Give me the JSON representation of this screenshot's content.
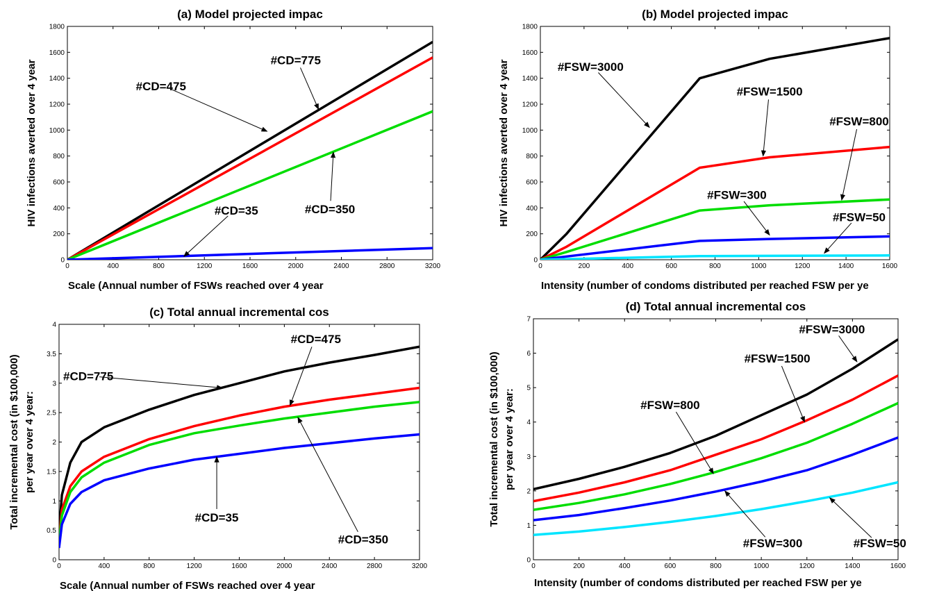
{
  "chart_data": [
    {
      "type": "line",
      "title": "(a) Model projected impac",
      "xlabel": "Scale (Annual number of FSWs reached over 4 year",
      "ylabel": "HIV infections averted over 4 year",
      "xlim": [
        0,
        3200
      ],
      "ylim": [
        0,
        1800
      ],
      "xticks": [
        0,
        400,
        800,
        1200,
        1600,
        2000,
        2400,
        2800,
        3200
      ],
      "yticks": [
        0,
        200,
        400,
        600,
        800,
        1000,
        1200,
        1400,
        1600,
        1800
      ],
      "grid": false,
      "series": [
        {
          "color": "#000000",
          "x": [
            0,
            3200
          ],
          "y": [
            0,
            1680
          ]
        },
        {
          "color": "#ff0000",
          "x": [
            0,
            3200
          ],
          "y": [
            0,
            1560
          ]
        },
        {
          "color": "#00dd00",
          "x": [
            0,
            3200
          ],
          "y": [
            0,
            1145
          ]
        },
        {
          "color": "#0000ff",
          "x": [
            0,
            3200
          ],
          "y": [
            0,
            90
          ]
        }
      ],
      "annotations": [
        {
          "text": "#CD=775",
          "tx": 2000,
          "ty": 1540,
          "ax": 2200,
          "ay": 1160
        },
        {
          "text": "#CD=475",
          "tx": 820,
          "ty": 1340,
          "ax": 1750,
          "ay": 990
        },
        {
          "text": "#CD=350",
          "tx": 2300,
          "ty": 390,
          "ax": 2330,
          "ay": 830
        },
        {
          "text": "#CD=35",
          "tx": 1480,
          "ty": 380,
          "ax": 1020,
          "ay": 25
        }
      ]
    },
    {
      "type": "line",
      "title": "(b) Model projected impac",
      "xlabel": "Intensity (number of condoms distributed per reached FSW per ye",
      "ylabel": "HIV infections averted over 4 year",
      "xlim": [
        0,
        1600
      ],
      "ylim": [
        0,
        1800
      ],
      "xticks": [
        0,
        200,
        400,
        600,
        800,
        1000,
        1200,
        1400,
        1600
      ],
      "yticks": [
        0,
        200,
        400,
        600,
        800,
        1000,
        1200,
        1400,
        1600,
        1800
      ],
      "grid": false,
      "series": [
        {
          "color": "#000000",
          "x": [
            0,
            120,
            730,
            1050,
            1600
          ],
          "y": [
            0,
            200,
            1400,
            1550,
            1710
          ]
        },
        {
          "color": "#ff0000",
          "x": [
            0,
            120,
            730,
            1050,
            1600
          ],
          "y": [
            0,
            100,
            710,
            790,
            870
          ]
        },
        {
          "color": "#00dd00",
          "x": [
            0,
            120,
            730,
            1050,
            1600
          ],
          "y": [
            0,
            60,
            380,
            420,
            465
          ]
        },
        {
          "color": "#0000ff",
          "x": [
            0,
            120,
            730,
            1050,
            1600
          ],
          "y": [
            0,
            25,
            145,
            160,
            180
          ]
        },
        {
          "color": "#00e5ff",
          "x": [
            0,
            120,
            730,
            1050,
            1600
          ],
          "y": [
            0,
            5,
            28,
            30,
            33
          ]
        }
      ],
      "annotations": [
        {
          "text": "#FSW=3000",
          "tx": 230,
          "ty": 1490,
          "ax": 500,
          "ay": 1020
        },
        {
          "text": "#FSW=1500",
          "tx": 1050,
          "ty": 1300,
          "ax": 1020,
          "ay": 800
        },
        {
          "text": "#FSW=800",
          "tx": 1460,
          "ty": 1070,
          "ax": 1380,
          "ay": 460
        },
        {
          "text": "#FSW=300",
          "tx": 900,
          "ty": 500,
          "ax": 1050,
          "ay": 190
        },
        {
          "text": "#FSW=50",
          "tx": 1460,
          "ty": 330,
          "ax": 1300,
          "ay": 50
        }
      ]
    },
    {
      "type": "line",
      "title": "(c) Total annual incremental cos",
      "xlabel": "Scale (Annual number of FSWs reached over 4 year",
      "ylabel": "Total incremental cost (in $100,000)",
      "ylabel2": "per year over 4 year:",
      "xlim": [
        0,
        3200
      ],
      "ylim": [
        0,
        4
      ],
      "xticks": [
        0,
        400,
        800,
        1200,
        1600,
        2000,
        2400,
        2800,
        3200
      ],
      "yticks": [
        "0",
        "0.5",
        "1",
        "1.5",
        "2",
        "2.5",
        "3",
        "3.5",
        "4"
      ],
      "grid": false,
      "series": [
        {
          "color": "#000000",
          "x": [
            0,
            25,
            100,
            200,
            400,
            800,
            1200,
            1600,
            2000,
            2400,
            2800,
            3200
          ],
          "y": [
            0.45,
            1.1,
            1.65,
            2.0,
            2.25,
            2.55,
            2.8,
            3.0,
            3.2,
            3.35,
            3.48,
            3.62
          ]
        },
        {
          "color": "#ff0000",
          "x": [
            0,
            25,
            100,
            200,
            400,
            800,
            1200,
            1600,
            2000,
            2400,
            2800,
            3200
          ],
          "y": [
            0.35,
            0.85,
            1.25,
            1.5,
            1.75,
            2.05,
            2.27,
            2.45,
            2.6,
            2.72,
            2.82,
            2.92
          ]
        },
        {
          "color": "#00dd00",
          "x": [
            0,
            25,
            100,
            200,
            400,
            800,
            1200,
            1600,
            2000,
            2400,
            2800,
            3200
          ],
          "y": [
            0.3,
            0.75,
            1.15,
            1.4,
            1.65,
            1.95,
            2.15,
            2.28,
            2.4,
            2.5,
            2.6,
            2.68
          ]
        },
        {
          "color": "#0000ff",
          "x": [
            0,
            25,
            100,
            200,
            400,
            800,
            1200,
            1600,
            2000,
            2400,
            2800,
            3200
          ],
          "y": [
            0.2,
            0.6,
            0.95,
            1.15,
            1.35,
            1.55,
            1.7,
            1.8,
            1.9,
            1.98,
            2.06,
            2.13
          ]
        }
      ],
      "annotations": [
        {
          "text": "#CD=775",
          "tx": 260,
          "ty": 3.12,
          "ax": 1450,
          "ay": 2.92
        },
        {
          "text": "#CD=475",
          "tx": 2280,
          "ty": 3.75,
          "ax": 2050,
          "ay": 2.62
        },
        {
          "text": "#CD=350",
          "tx": 2700,
          "ty": 0.35,
          "ax": 2120,
          "ay": 2.42
        },
        {
          "text": "#CD=35",
          "tx": 1400,
          "ty": 0.72,
          "ax": 1400,
          "ay": 1.75
        }
      ]
    },
    {
      "type": "line",
      "title": "(d) Total annual incremental cos",
      "xlabel": "Intensity (number of condoms distributed per reached FSW per ye",
      "ylabel": "Total incremental cost (in $100,000)",
      "ylabel2": "per year over 4 year:",
      "xlim": [
        0,
        1600
      ],
      "ylim": [
        0,
        7
      ],
      "xticks": [
        0,
        200,
        400,
        600,
        800,
        1000,
        1200,
        1400,
        1600
      ],
      "yticks": [
        0,
        1,
        2,
        3,
        4,
        5,
        6,
        7
      ],
      "grid": false,
      "series": [
        {
          "color": "#000000",
          "x": [
            0,
            200,
            400,
            600,
            800,
            1000,
            1200,
            1400,
            1600
          ],
          "y": [
            2.05,
            2.35,
            2.7,
            3.1,
            3.6,
            4.2,
            4.8,
            5.55,
            6.4
          ]
        },
        {
          "color": "#ff0000",
          "x": [
            0,
            200,
            400,
            600,
            800,
            1000,
            1200,
            1400,
            1600
          ],
          "y": [
            1.7,
            1.95,
            2.25,
            2.6,
            3.05,
            3.5,
            4.05,
            4.65,
            5.35
          ]
        },
        {
          "color": "#00dd00",
          "x": [
            0,
            200,
            400,
            600,
            800,
            1000,
            1200,
            1400,
            1600
          ],
          "y": [
            1.45,
            1.65,
            1.9,
            2.2,
            2.55,
            2.95,
            3.4,
            3.95,
            4.55
          ]
        },
        {
          "color": "#0000ff",
          "x": [
            0,
            200,
            400,
            600,
            800,
            1000,
            1200,
            1400,
            1600
          ],
          "y": [
            1.15,
            1.3,
            1.5,
            1.72,
            1.98,
            2.27,
            2.6,
            3.05,
            3.55
          ]
        },
        {
          "color": "#00e5ff",
          "x": [
            0,
            200,
            400,
            600,
            800,
            1000,
            1200,
            1400,
            1600
          ],
          "y": [
            0.72,
            0.82,
            0.95,
            1.1,
            1.27,
            1.47,
            1.7,
            1.95,
            2.25
          ]
        }
      ],
      "annotations": [
        {
          "text": "#FSW=3000",
          "tx": 1310,
          "ty": 6.7,
          "ax": 1420,
          "ay": 5.75
        },
        {
          "text": "#FSW=1500",
          "tx": 1070,
          "ty": 5.85,
          "ax": 1190,
          "ay": 4.0
        },
        {
          "text": "#FSW=800",
          "tx": 600,
          "ty": 4.5,
          "ax": 790,
          "ay": 2.5
        },
        {
          "text": "#FSW=300",
          "tx": 1050,
          "ty": 0.48,
          "ax": 840,
          "ay": 2.0
        },
        {
          "text": "#FSW=50",
          "tx": 1520,
          "ty": 0.48,
          "ax": 1300,
          "ay": 1.8
        }
      ]
    }
  ]
}
